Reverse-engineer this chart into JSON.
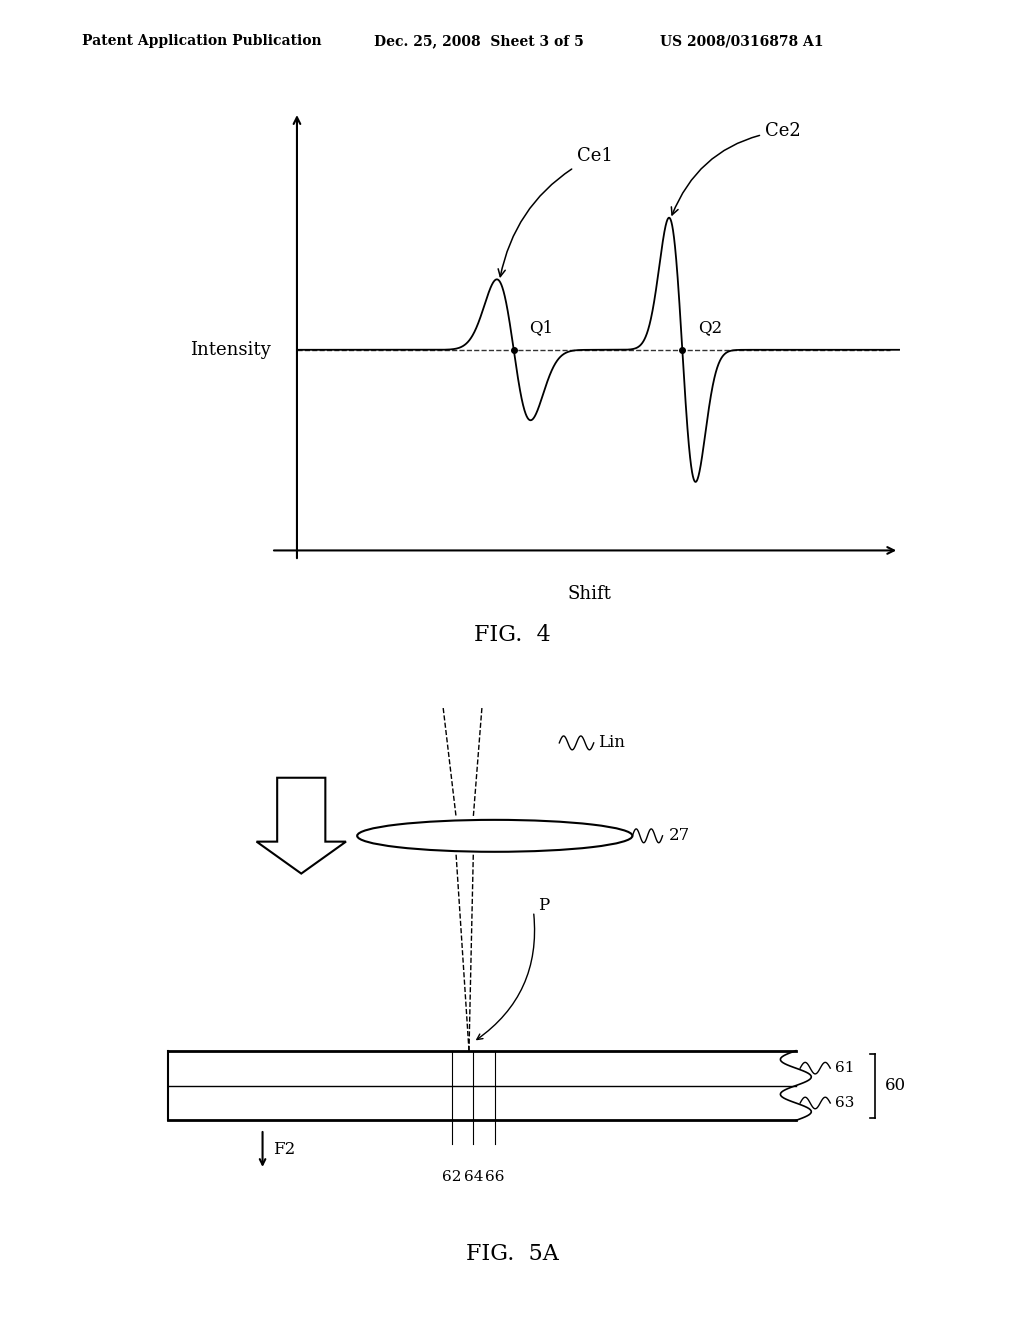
{
  "bg_color": "#ffffff",
  "header_left": "Patent Application Publication",
  "header_mid": "Dec. 25, 2008  Sheet 3 of 5",
  "header_right": "US 2008/0316878 A1",
  "fig4_title": "FIG.  4",
  "fig5a_title": "FIG.  5A",
  "fig4_ylabel": "Intensity",
  "fig4_xlabel": "Shift",
  "fig4_label_Q1": "Q1",
  "fig4_label_Q2": "Q2",
  "fig4_label_Ce1": "Ce1",
  "fig4_label_Ce2": "Ce2",
  "fig5a_label_Lin": "Lin",
  "fig5a_label_27": "27",
  "fig5a_label_P": "P",
  "fig5a_label_F2": "F2",
  "fig5a_label_60": "60",
  "fig5a_label_61": "61",
  "fig5a_label_63": "63",
  "fig5a_label_62": "62",
  "fig5a_label_64": "64",
  "fig5a_label_66": "66"
}
